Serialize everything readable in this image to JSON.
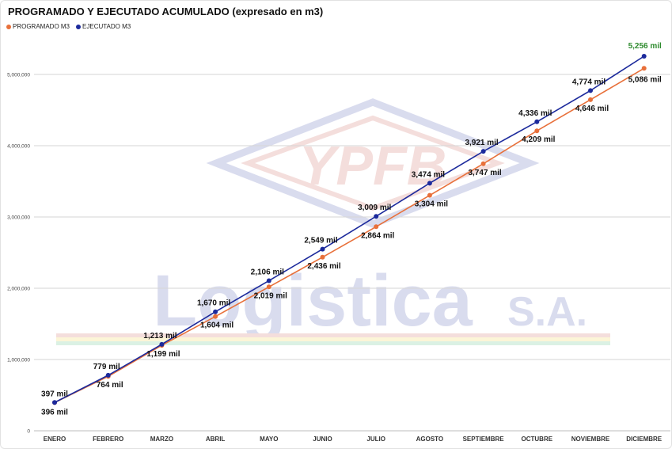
{
  "chart_data": {
    "type": "line",
    "title": "PROGRAMADO Y EJECUTADO ACUMULADO (expresado en m3)",
    "categories": [
      "ENERO",
      "FEBRERO",
      "MARZO",
      "ABRIL",
      "MAYO",
      "JUNIO",
      "JULIO",
      "AGOSTO",
      "SEPTIEMBRE",
      "OCTUBRE",
      "NOVIEMBRE",
      "DICIEMBRE"
    ],
    "series": [
      {
        "name": "PROGRAMADO M3",
        "color": "#e8703a",
        "values": [
          396000,
          764000,
          1199000,
          1604000,
          2019000,
          2436000,
          2864000,
          3304000,
          3747000,
          4209000,
          4646000,
          5086000
        ],
        "labels": [
          "396 mil",
          "764 mil",
          "1,199 mil",
          "1,604 mil",
          "2,019 mil",
          "2,436 mil",
          "2,864 mil",
          "3,304 mil",
          "3,747 mil",
          "4,209 mil",
          "4,646 mil",
          "5,086 mil"
        ]
      },
      {
        "name": "EJECUTADO M3",
        "color": "#1c2a9c",
        "values": [
          397000,
          779000,
          1213000,
          1670000,
          2106000,
          2549000,
          3009000,
          3474000,
          3921000,
          4336000,
          4774000,
          5256000
        ],
        "labels": [
          "397 mil",
          "779 mil",
          "1,213 mil",
          "1,670 mil",
          "2,106 mil",
          "2,549 mil",
          "3,009 mil",
          "3,474 mil",
          "3,921 mil",
          "4,336 mil",
          "4,774 mil",
          "5,256 mil"
        ]
      }
    ],
    "y_ticks": [
      0,
      1000000,
      2000000,
      3000000,
      4000000,
      5000000
    ],
    "y_tick_labels": [
      "0",
      "1,000,000",
      "2,000,000",
      "3,000,000",
      "4,000,000",
      "5,000,000"
    ],
    "ylim": [
      0,
      5556000
    ],
    "grid": true,
    "legend_position": "top-left",
    "highlight_color": "#2e8b2e"
  },
  "watermark": {
    "logo_text": "YPFB",
    "company": "Logistica",
    "suffix": "S.A."
  }
}
